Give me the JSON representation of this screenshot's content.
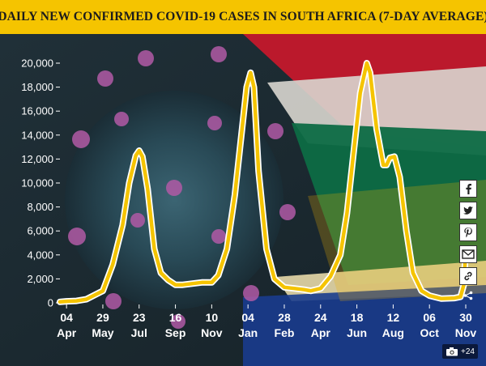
{
  "header": {
    "title": "DAILY NEW CONFIRMED COVID-19 CASES IN SOUTH AFRICA (7-DAY AVERAGE)"
  },
  "chart_data": {
    "type": "line",
    "title": "DAILY NEW CONFIRMED COVID-19 CASES IN SOUTH AFRICA (7-DAY AVERAGE)",
    "xlabel": "",
    "ylabel": "",
    "ylim": [
      0,
      20000
    ],
    "xlim": [
      "2020-03-25",
      "2021-11-30"
    ],
    "yticks": [
      0,
      2000,
      4000,
      6000,
      8000,
      10000,
      12000,
      14000,
      16000,
      18000,
      20000
    ],
    "ytick_labels": [
      "0",
      "2,000",
      "4,000",
      "6,000",
      "8,000",
      "10,000",
      "12,000",
      "14,000",
      "16,000",
      "18,000",
      "20,000"
    ],
    "xticks": [
      {
        "date": "2020-04-04",
        "day": "04",
        "month": "Apr"
      },
      {
        "date": "2020-05-29",
        "day": "29",
        "month": "May"
      },
      {
        "date": "2020-07-23",
        "day": "23",
        "month": "Jul"
      },
      {
        "date": "2020-09-16",
        "day": "16",
        "month": "Sep"
      },
      {
        "date": "2020-11-10",
        "day": "10",
        "month": "Nov"
      },
      {
        "date": "2021-01-04",
        "day": "04",
        "month": "Jan"
      },
      {
        "date": "2021-02-28",
        "day": "28",
        "month": "Feb"
      },
      {
        "date": "2021-04-24",
        "day": "24",
        "month": "Apr"
      },
      {
        "date": "2021-06-18",
        "day": "18",
        "month": "Jun"
      },
      {
        "date": "2021-08-12",
        "day": "12",
        "month": "Aug"
      },
      {
        "date": "2021-10-06",
        "day": "06",
        "month": "Oct"
      },
      {
        "date": "2021-11-30",
        "day": "30",
        "month": "Nov"
      }
    ],
    "grid": false,
    "legend": "none",
    "line_color": "#f5c400",
    "series": [
      {
        "name": "",
        "points": [
          [
            "2020-03-25",
            80
          ],
          [
            "2020-04-04",
            130
          ],
          [
            "2020-04-19",
            160
          ],
          [
            "2020-05-04",
            300
          ],
          [
            "2020-05-29",
            1000
          ],
          [
            "2020-06-13",
            3200
          ],
          [
            "2020-06-28",
            6500
          ],
          [
            "2020-07-08",
            10000
          ],
          [
            "2020-07-18",
            12300
          ],
          [
            "2020-07-23",
            12700
          ],
          [
            "2020-07-28",
            12200
          ],
          [
            "2020-08-05",
            9500
          ],
          [
            "2020-08-15",
            4500
          ],
          [
            "2020-08-25",
            2500
          ],
          [
            "2020-09-05",
            1900
          ],
          [
            "2020-09-16",
            1500
          ],
          [
            "2020-09-26",
            1500
          ],
          [
            "2020-10-11",
            1600
          ],
          [
            "2020-10-26",
            1700
          ],
          [
            "2020-11-10",
            1700
          ],
          [
            "2020-11-20",
            2300
          ],
          [
            "2020-12-03",
            4500
          ],
          [
            "2020-12-15",
            9000
          ],
          [
            "2020-12-25",
            14000
          ],
          [
            "2021-01-02",
            18000
          ],
          [
            "2021-01-08",
            19200
          ],
          [
            "2021-01-13",
            18000
          ],
          [
            "2021-01-20",
            11000
          ],
          [
            "2021-02-01",
            4500
          ],
          [
            "2021-02-13",
            2000
          ],
          [
            "2021-02-28",
            1300
          ],
          [
            "2021-03-15",
            1200
          ],
          [
            "2021-03-30",
            1100
          ],
          [
            "2021-04-09",
            1000
          ],
          [
            "2021-04-24",
            1200
          ],
          [
            "2021-05-09",
            2200
          ],
          [
            "2021-05-24",
            4000
          ],
          [
            "2021-06-03",
            7500
          ],
          [
            "2021-06-13",
            12500
          ],
          [
            "2021-06-23",
            17500
          ],
          [
            "2021-07-03",
            20000
          ],
          [
            "2021-07-08",
            19200
          ],
          [
            "2021-07-18",
            14500
          ],
          [
            "2021-07-28",
            11500
          ],
          [
            "2021-08-02",
            11500
          ],
          [
            "2021-08-07",
            12100
          ],
          [
            "2021-08-14",
            12200
          ],
          [
            "2021-08-22",
            10500
          ],
          [
            "2021-09-01",
            6000
          ],
          [
            "2021-09-11",
            2500
          ],
          [
            "2021-09-24",
            1000
          ],
          [
            "2021-10-06",
            600
          ],
          [
            "2021-10-24",
            350
          ],
          [
            "2021-11-13",
            400
          ],
          [
            "2021-11-22",
            500
          ],
          [
            "2021-11-27",
            1500
          ],
          [
            "2021-11-30",
            4400
          ]
        ]
      }
    ]
  },
  "share": {
    "items": [
      {
        "icon": "facebook-icon"
      },
      {
        "icon": "twitter-icon"
      },
      {
        "icon": "pinterest-icon"
      },
      {
        "icon": "email-icon"
      },
      {
        "icon": "link-icon"
      }
    ],
    "more_icon": "share-icon"
  },
  "gallery": {
    "icon": "camera-icon",
    "count": "+24"
  }
}
